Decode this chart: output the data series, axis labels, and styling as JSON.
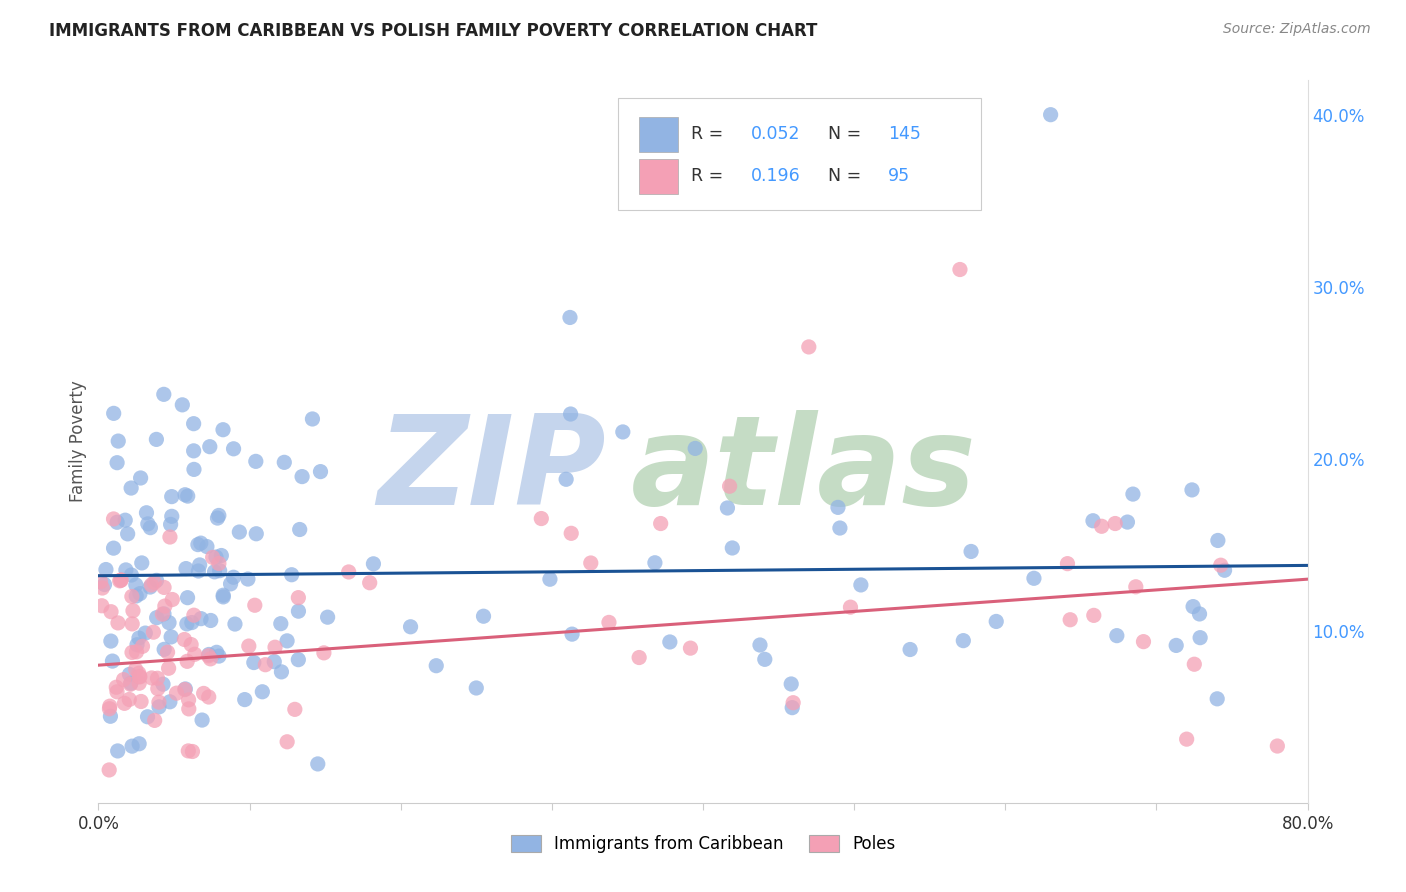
{
  "title": "IMMIGRANTS FROM CARIBBEAN VS POLISH FAMILY POVERTY CORRELATION CHART",
  "source": "Source: ZipAtlas.com",
  "ylabel": "Family Poverty",
  "xlim": [
    0.0,
    0.8
  ],
  "ylim": [
    0.0,
    0.42
  ],
  "caribbean_R": 0.052,
  "caribbean_N": 145,
  "poles_R": 0.196,
  "poles_N": 95,
  "caribbean_color": "#92b4e3",
  "poles_color": "#f4a0b5",
  "caribbean_line_color": "#1a5294",
  "poles_line_color": "#d9607a",
  "background_color": "#ffffff",
  "grid_color": "#cccccc",
  "title_color": "#333333",
  "watermark_color_zip": "#c8d8f0",
  "watermark_color_atlas": "#c8d8c8",
  "watermark_text": "ZIPatlas",
  "axis_label_color": "#4499ff",
  "legend_label_caribbean": "Immigrants from Caribbean",
  "legend_label_poles": "Poles",
  "carib_line_y0": 0.132,
  "carib_line_y1": 0.138,
  "poles_line_y0": 0.08,
  "poles_line_y1": 0.13,
  "seed_carib": 42,
  "seed_poles": 99
}
